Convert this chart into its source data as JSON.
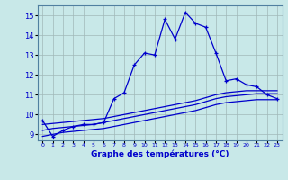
{
  "xlabel": "Graphe des températures (°C)",
  "bg_color": "#c8e8e8",
  "line_color": "#0000cc",
  "grid_color": "#a0b8b8",
  "hours": [
    0,
    1,
    2,
    3,
    4,
    5,
    6,
    7,
    8,
    9,
    10,
    11,
    12,
    13,
    14,
    15,
    16,
    17,
    18,
    19,
    20,
    21,
    22,
    23
  ],
  "series_main": [
    9.7,
    8.9,
    9.2,
    9.4,
    9.5,
    9.5,
    9.6,
    10.8,
    11.1,
    12.5,
    13.1,
    13.0,
    14.8,
    13.8,
    15.15,
    14.6,
    14.4,
    13.1,
    11.7,
    11.8,
    11.5,
    11.4,
    11.0,
    10.8
  ],
  "series_avg1": [
    9.5,
    9.55,
    9.6,
    9.65,
    9.7,
    9.75,
    9.8,
    9.9,
    10.0,
    10.1,
    10.2,
    10.3,
    10.4,
    10.5,
    10.6,
    10.7,
    10.85,
    11.0,
    11.1,
    11.15,
    11.2,
    11.2,
    11.2,
    11.2
  ],
  "series_avg2": [
    9.2,
    9.3,
    9.35,
    9.4,
    9.45,
    9.5,
    9.6,
    9.7,
    9.8,
    9.9,
    10.0,
    10.1,
    10.2,
    10.3,
    10.4,
    10.5,
    10.65,
    10.8,
    10.9,
    10.95,
    11.0,
    11.05,
    11.05,
    11.05
  ],
  "series_avg3": [
    8.9,
    9.0,
    9.1,
    9.15,
    9.2,
    9.25,
    9.3,
    9.4,
    9.5,
    9.6,
    9.7,
    9.8,
    9.9,
    10.0,
    10.1,
    10.2,
    10.35,
    10.5,
    10.6,
    10.65,
    10.7,
    10.75,
    10.75,
    10.75
  ],
  "ylim": [
    8.7,
    15.5
  ],
  "yticks": [
    9,
    10,
    11,
    12,
    13,
    14,
    15
  ],
  "xlim": [
    -0.5,
    23.5
  ],
  "xtick_labels": [
    "0",
    "1",
    "2",
    "3",
    "4",
    "5",
    "6",
    "7",
    "8",
    "9",
    "10",
    "11",
    "12",
    "13",
    "14",
    "15",
    "16",
    "17",
    "18",
    "19",
    "20",
    "21",
    "22",
    "23"
  ]
}
